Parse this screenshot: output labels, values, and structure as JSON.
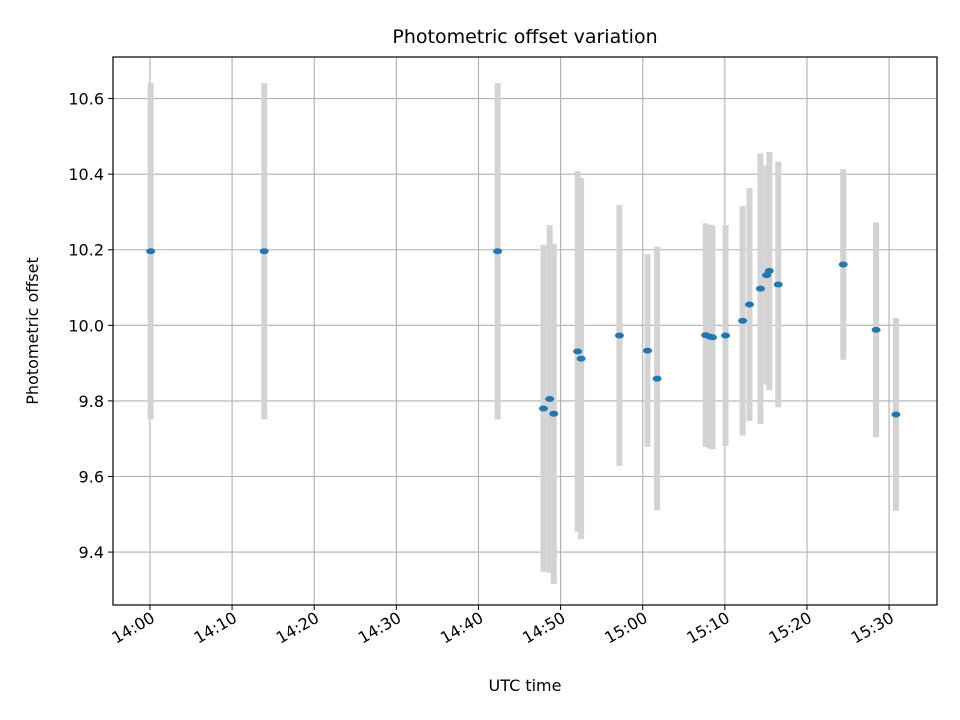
{
  "chart_data": {
    "type": "scatter",
    "title": "Photometric offset variation",
    "xlabel": "UTC time",
    "ylabel": "Photometric offset",
    "xlim": [
      "13:55:30",
      "15:35:50"
    ],
    "ylim": [
      9.26,
      10.71
    ],
    "xticks": [
      "14:00",
      "14:10",
      "14:20",
      "14:30",
      "14:40",
      "14:50",
      "15:00",
      "15:10",
      "15:20",
      "15:30"
    ],
    "yticks": [
      "9.4",
      "9.6",
      "9.8",
      "10.0",
      "10.2",
      "10.4",
      "10.6"
    ],
    "grid": true,
    "error_bar_color": "#d3d3d3",
    "marker_color": "#1f77b4",
    "points": [
      {
        "x": "14:00:05",
        "y": 10.196,
        "err": 0.445
      },
      {
        "x": "14:13:55",
        "y": 10.196,
        "err": 0.445
      },
      {
        "x": "14:42:20",
        "y": 10.196,
        "err": 0.445
      },
      {
        "x": "14:47:55",
        "y": 9.78,
        "err": 0.433
      },
      {
        "x": "14:48:40",
        "y": 9.805,
        "err": 0.46
      },
      {
        "x": "14:49:10",
        "y": 9.766,
        "err": 0.45
      },
      {
        "x": "14:52:05",
        "y": 9.931,
        "err": 0.477
      },
      {
        "x": "14:52:30",
        "y": 9.912,
        "err": 0.478
      },
      {
        "x": "14:57:10",
        "y": 9.973,
        "err": 0.345
      },
      {
        "x": "15:00:35",
        "y": 9.933,
        "err": 0.255
      },
      {
        "x": "15:01:45",
        "y": 9.859,
        "err": 0.349
      },
      {
        "x": "15:07:40",
        "y": 9.974,
        "err": 0.296
      },
      {
        "x": "15:08:10",
        "y": 9.97,
        "err": 0.296
      },
      {
        "x": "15:08:30",
        "y": 9.968,
        "err": 0.296
      },
      {
        "x": "15:10:05",
        "y": 9.973,
        "err": 0.292
      },
      {
        "x": "15:12:10",
        "y": 10.012,
        "err": 0.304
      },
      {
        "x": "15:13:00",
        "y": 10.055,
        "err": 0.308
      },
      {
        "x": "15:14:20",
        "y": 10.097,
        "err": 0.358
      },
      {
        "x": "15:15:05",
        "y": 10.133,
        "err": 0.29
      },
      {
        "x": "15:15:25",
        "y": 10.144,
        "err": 0.315
      },
      {
        "x": "15:16:30",
        "y": 10.108,
        "err": 0.325
      },
      {
        "x": "15:24:25",
        "y": 10.161,
        "err": 0.252
      },
      {
        "x": "15:28:25",
        "y": 9.988,
        "err": 0.284
      },
      {
        "x": "15:30:50",
        "y": 9.764,
        "err": 0.255
      }
    ]
  }
}
